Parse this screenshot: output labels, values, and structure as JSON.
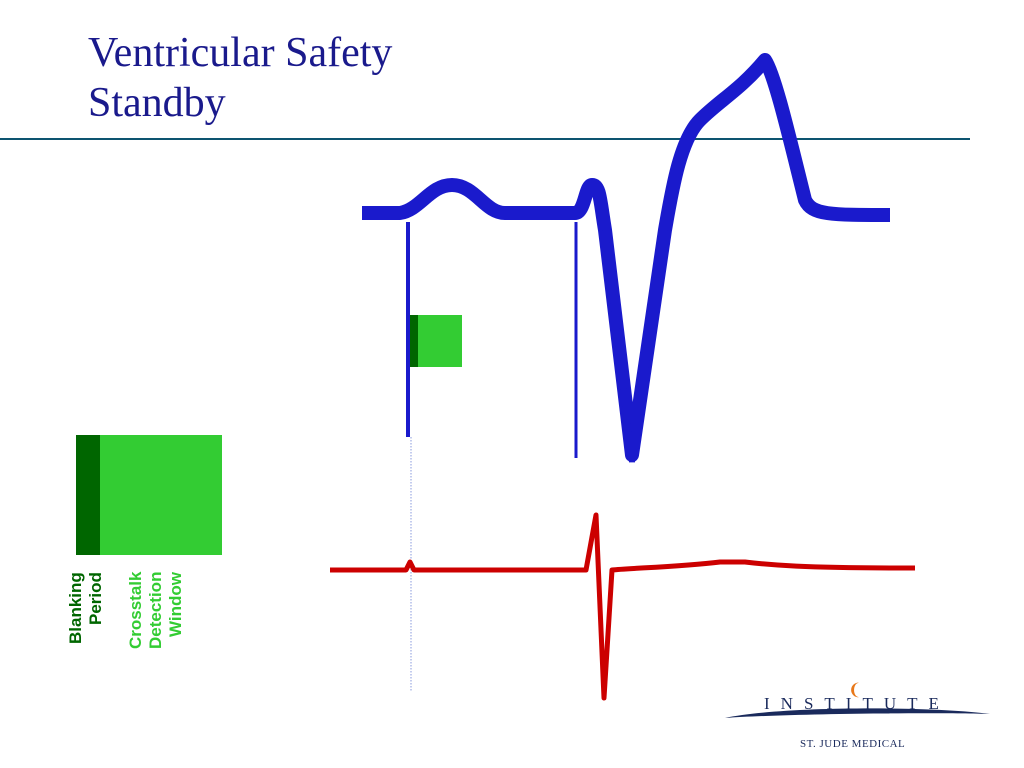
{
  "slide": {
    "title_line1": "Ventricular Safety",
    "title_line2": "Standby"
  },
  "legend": {
    "blanking_line1": "Blanking",
    "blanking_line2": "Period",
    "crosstalk_line1": "Crosstalk",
    "crosstalk_line2": "Detection",
    "crosstalk_line3": "Window"
  },
  "logo": {
    "wordmark": "INSTITUTE",
    "company": "ST. JUDE MEDICAL"
  },
  "colors": {
    "title": "#1a1a8c",
    "ecg_trace": "#1a1acc",
    "egm_trace": "#cc0000",
    "blanking_period": "#006600",
    "crosstalk_window": "#33cc33",
    "rule": "#0d5470"
  }
}
